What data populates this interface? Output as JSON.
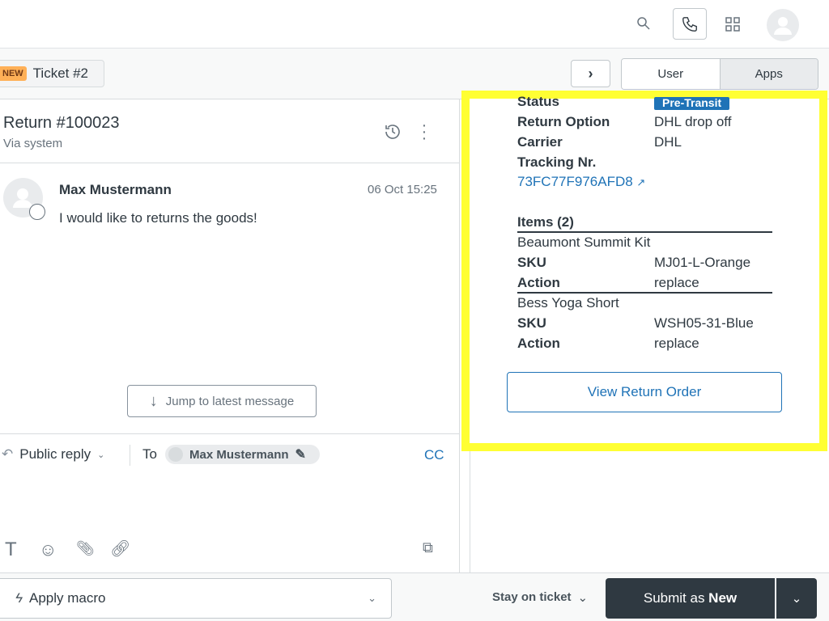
{
  "header": {
    "icons": [
      "search-icon",
      "phone-icon",
      "grid-icon",
      "avatar-icon"
    ]
  },
  "ticket_tab": {
    "badge": "NEW",
    "title": "Ticket #2"
  },
  "side_tabs": {
    "next": "chevron-right-icon",
    "user": "User",
    "apps": "Apps"
  },
  "conversation": {
    "title": "Return #100023",
    "subtitle": "Via system",
    "message": {
      "author": "Max Mustermann",
      "time": "06 Oct 15:25",
      "body": "I would like to returns the goods!"
    },
    "jump_label": "Jump to latest message"
  },
  "reply": {
    "mode": "Public reply",
    "to_label": "To",
    "recipient": "Max Mustermann",
    "cc": "CC"
  },
  "app_panel": {
    "status_label": "Status",
    "status_value": "Pre-Transit",
    "return_option_label": "Return Option",
    "return_option_value": "DHL drop off",
    "carrier_label": "Carrier",
    "carrier_value": "DHL",
    "tracking_label": "Tracking Nr.",
    "tracking_value": "73FC77F976AFD8",
    "items_header": "Items (2)",
    "items": [
      {
        "name": "Beaumont Summit Kit",
        "sku_label": "SKU",
        "sku": "MJ01-L-Orange",
        "action_label": "Action",
        "action": "replace"
      },
      {
        "name": "Bess Yoga Short",
        "sku_label": "SKU",
        "sku": "WSH05-31-Blue",
        "action_label": "Action",
        "action": "replace"
      }
    ],
    "view_button": "View Return Order",
    "status_color": "#1f73b7",
    "highlight_color": "#ffff33"
  },
  "footer": {
    "macro": "Apply macro",
    "stay": "Stay on ticket",
    "submit_prefix": "Submit as ",
    "submit_status": "New"
  }
}
